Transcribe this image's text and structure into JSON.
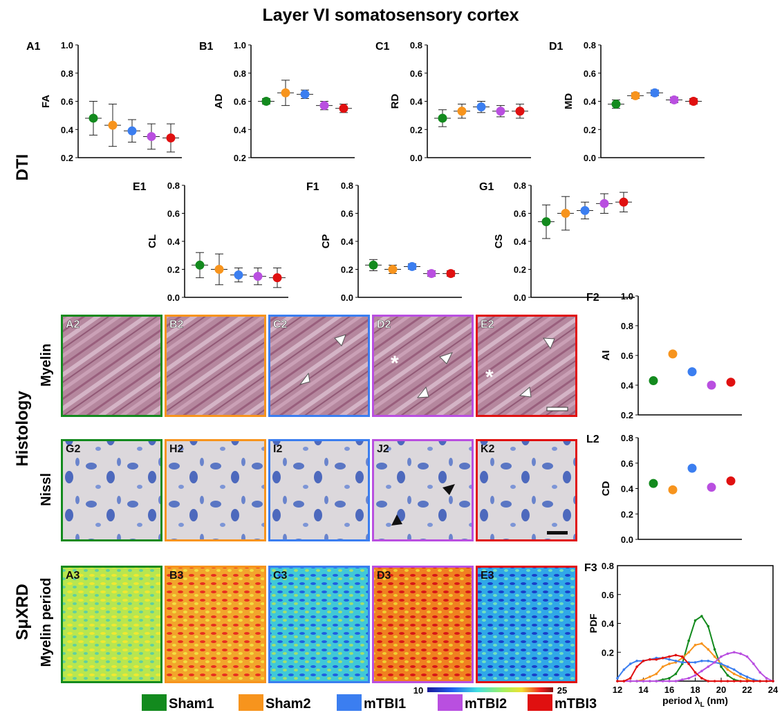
{
  "title": "Layer VI somatosensory cortex",
  "row_labels": {
    "dti": "DTI",
    "histology": "Histology",
    "myelin": "Myelin",
    "nissl": "Nissl",
    "sxrd": "SμXRD",
    "period": "Myelin period"
  },
  "images": {
    "myelin": [
      "A2",
      "B2",
      "C2",
      "D2",
      "E2"
    ],
    "nissl": [
      "G2",
      "H2",
      "I2",
      "J2",
      "K2"
    ],
    "xrd": [
      "A3",
      "B3",
      "C3",
      "D3",
      "E3"
    ]
  },
  "colorbar": {
    "min": 10,
    "max": 25
  },
  "chart_data": [
    {
      "type": "dot",
      "panel": "A1",
      "ylabel": "FA",
      "ylim": [
        0.2,
        1.0
      ],
      "yticks": [
        0.2,
        0.4,
        0.6,
        0.8,
        {
          "value": 1.0,
          "label": "1.0"
        }
      ],
      "values": [
        0.48,
        0.43,
        0.39,
        0.35,
        0.34
      ],
      "errors": [
        0.12,
        0.15,
        0.08,
        0.09,
        0.1
      ]
    },
    {
      "type": "dot",
      "panel": "B1",
      "ylabel": "AD",
      "ylim": [
        0.2,
        1.0
      ],
      "yticks": [
        0.2,
        0.4,
        0.6,
        0.8,
        {
          "value": 1.0,
          "label": "1.0"
        }
      ],
      "values": [
        0.6,
        0.66,
        0.65,
        0.57,
        0.55
      ],
      "errors": [
        0.02,
        0.09,
        0.03,
        0.03,
        0.03
      ]
    },
    {
      "type": "dot",
      "panel": "C1",
      "ylabel": "RD",
      "ylim": [
        0,
        0.8
      ],
      "yticks": [
        {
          "value": 0,
          "label": "0.0"
        },
        0.2,
        0.4,
        0.6,
        0.8
      ],
      "values": [
        0.28,
        0.33,
        0.36,
        0.33,
        0.33
      ],
      "errors": [
        0.06,
        0.05,
        0.04,
        0.04,
        0.05
      ]
    },
    {
      "type": "dot",
      "panel": "D1",
      "ylabel": "MD",
      "ylim": [
        0,
        0.8
      ],
      "yticks": [
        {
          "value": 0,
          "label": "0.0"
        },
        0.2,
        0.4,
        0.6,
        0.8
      ],
      "values": [
        0.38,
        0.44,
        0.46,
        0.41,
        0.4
      ],
      "errors": [
        0.03,
        0.02,
        0.02,
        0.02,
        0.02
      ]
    },
    {
      "type": "dot",
      "panel": "E1",
      "ylabel": "CL",
      "ylim": [
        0,
        0.8
      ],
      "yticks": [
        {
          "value": 0,
          "label": "0.0"
        },
        0.2,
        0.4,
        0.6,
        0.8
      ],
      "values": [
        0.23,
        0.2,
        0.16,
        0.15,
        0.14
      ],
      "errors": [
        0.09,
        0.11,
        0.05,
        0.06,
        0.07
      ]
    },
    {
      "type": "dot",
      "panel": "F1",
      "ylabel": "CP",
      "ylim": [
        0,
        0.8
      ],
      "yticks": [
        {
          "value": 0,
          "label": "0.0"
        },
        0.2,
        0.4,
        0.6,
        0.8
      ],
      "values": [
        0.23,
        0.2,
        0.22,
        0.17,
        0.17
      ],
      "errors": [
        0.04,
        0.03,
        0.02,
        0.02,
        0.02
      ]
    },
    {
      "type": "dot",
      "panel": "G1",
      "ylabel": "CS",
      "ylim": [
        0,
        0.8
      ],
      "yticks": [
        {
          "value": 0,
          "label": "0.0"
        },
        0.2,
        0.4,
        0.6,
        0.8
      ],
      "values": [
        0.54,
        0.6,
        0.62,
        0.67,
        0.68
      ],
      "errors": [
        0.12,
        0.12,
        0.06,
        0.07,
        0.07
      ]
    },
    {
      "type": "dot",
      "panel": "F2",
      "ylabel": "AI",
      "ylim": [
        0.2,
        1.0
      ],
      "yticks": [
        0.2,
        0.4,
        0.6,
        0.8,
        {
          "value": 1.0,
          "label": "1.0"
        }
      ],
      "values": [
        0.43,
        0.61,
        0.49,
        0.4,
        0.42
      ]
    },
    {
      "type": "dot",
      "panel": "L2",
      "ylabel": "CD",
      "ylim": [
        0,
        0.8
      ],
      "yticks": [
        {
          "value": 0,
          "label": "0.0"
        },
        0.2,
        0.4,
        0.6,
        0.8
      ],
      "values": [
        0.44,
        0.39,
        0.56,
        0.41,
        0.46
      ]
    },
    {
      "type": "line",
      "panel": "F3",
      "ylabel": "PDF",
      "xlabel": [
        "period λ",
        "L",
        " (nm)"
      ],
      "xlim": [
        12,
        24
      ],
      "xticks": [
        12,
        14,
        16,
        18,
        20,
        22,
        24
      ],
      "ylim": [
        0,
        0.8
      ],
      "yticks": [
        0.2,
        0.4,
        0.6,
        0.8
      ],
      "x": [
        12,
        12.5,
        13,
        13.5,
        14,
        14.5,
        15,
        15.5,
        16,
        16.5,
        17,
        17.5,
        18,
        18.5,
        19,
        19.5,
        20,
        20.5,
        21,
        21.5,
        22,
        22.5,
        23,
        23.5,
        24
      ],
      "series": [
        {
          "name": "Sham1",
          "color": "#138a1e",
          "values": [
            0,
            0,
            0,
            0,
            0,
            0,
            0,
            0.01,
            0.02,
            0.05,
            0.12,
            0.28,
            0.42,
            0.45,
            0.38,
            0.22,
            0.1,
            0.04,
            0.01,
            0,
            0,
            0,
            0,
            0,
            0
          ]
        },
        {
          "name": "Sham2",
          "color": "#f7941d",
          "values": [
            0,
            0,
            0,
            0,
            0.01,
            0.03,
            0.05,
            0.1,
            0.12,
            0.13,
            0.16,
            0.2,
            0.25,
            0.26,
            0.22,
            0.17,
            0.12,
            0.08,
            0.05,
            0.03,
            0.01,
            0,
            0,
            0,
            0
          ]
        },
        {
          "name": "mTBI1",
          "color": "#3b7ef0",
          "values": [
            0.02,
            0.08,
            0.12,
            0.14,
            0.14,
            0.15,
            0.16,
            0.16,
            0.15,
            0.14,
            0.13,
            0.13,
            0.13,
            0.14,
            0.14,
            0.13,
            0.12,
            0.1,
            0.08,
            0.05,
            0.03,
            0.01,
            0,
            0,
            0
          ]
        },
        {
          "name": "mTBI2",
          "color": "#b94fe0",
          "values": [
            0,
            0,
            0,
            0,
            0,
            0,
            0,
            0,
            0,
            0,
            0.01,
            0.02,
            0.04,
            0.07,
            0.1,
            0.13,
            0.17,
            0.19,
            0.2,
            0.19,
            0.17,
            0.12,
            0.06,
            0.02,
            0
          ]
        },
        {
          "name": "mTBI3",
          "color": "#e01010",
          "values": [
            0,
            0,
            0.02,
            0.1,
            0.14,
            0.15,
            0.15,
            0.16,
            0.17,
            0.18,
            0.17,
            0.12,
            0.06,
            0.02,
            0,
            0,
            0,
            0,
            0,
            0,
            0,
            0,
            0,
            0,
            0
          ]
        }
      ]
    }
  ]
}
